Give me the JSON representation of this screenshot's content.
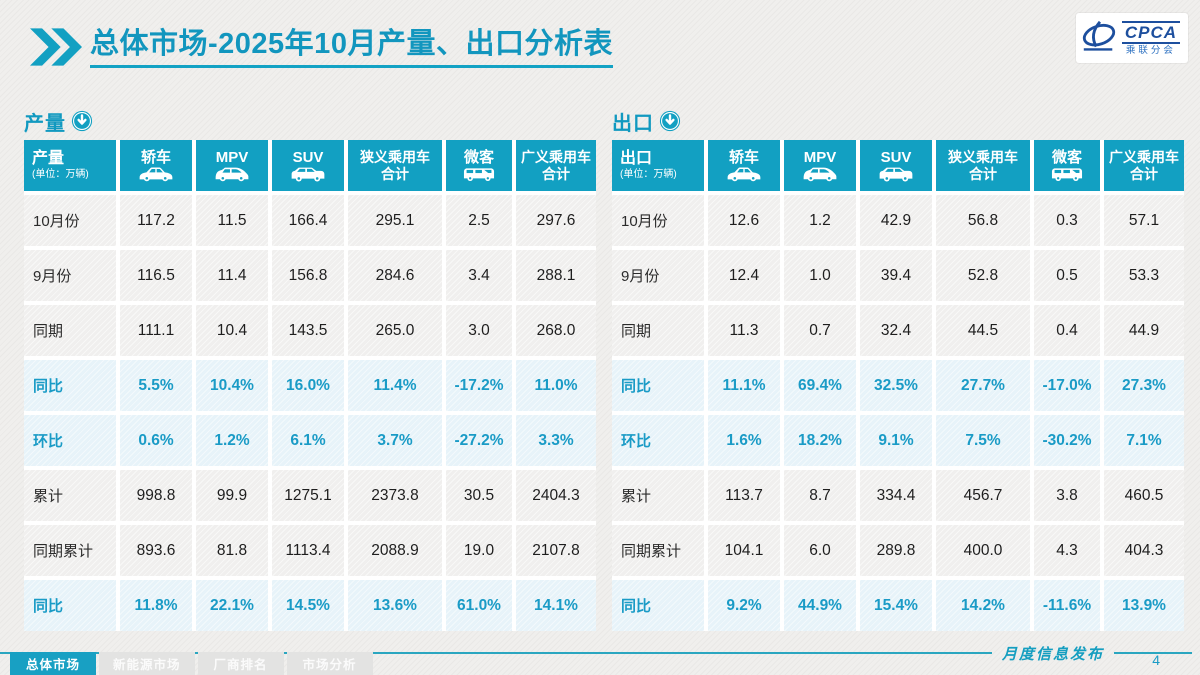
{
  "page": {
    "title_bold": "总体市场",
    "title_rest": "-2025年10月产量、出口分析表",
    "footer_text": "月度信息发布",
    "page_number": "4"
  },
  "logo": {
    "abbr": "CPCA",
    "name": "乘联分会"
  },
  "colors": {
    "accent": "#12a0c2",
    "header_bg": "#12a0c2",
    "highlight_bg": "#e7f3f9",
    "highlight_text": "#1a9bc6"
  },
  "bottom_tabs": [
    {
      "label": "总体市场",
      "active": true
    },
    {
      "label": "新能源市场",
      "active": false
    },
    {
      "label": "厂商排名",
      "active": false
    },
    {
      "label": "市场分析",
      "active": false
    }
  ],
  "tables": [
    {
      "section_label": "产量",
      "corner_label": "产量",
      "unit_note": "(单位：万辆)",
      "columns": [
        {
          "label": "轿车",
          "label2": "",
          "icon": "sedan-icon"
        },
        {
          "label": "MPV",
          "label2": "",
          "icon": "mpv-icon"
        },
        {
          "label": "SUV",
          "label2": "",
          "icon": "suv-icon"
        },
        {
          "label": "狭义乘用车",
          "label2": "合计",
          "icon": ""
        },
        {
          "label": "微客",
          "label2": "",
          "icon": "microvan-icon"
        },
        {
          "label": "广义乘用车",
          "label2": "合计",
          "icon": ""
        }
      ],
      "rows": [
        {
          "label": "10月份",
          "highlight": false,
          "cells": [
            "117.2",
            "11.5",
            "166.4",
            "295.1",
            "2.5",
            "297.6"
          ]
        },
        {
          "label": "9月份",
          "highlight": false,
          "cells": [
            "116.5",
            "11.4",
            "156.8",
            "284.6",
            "3.4",
            "288.1"
          ]
        },
        {
          "label": "同期",
          "highlight": false,
          "cells": [
            "111.1",
            "10.4",
            "143.5",
            "265.0",
            "3.0",
            "268.0"
          ]
        },
        {
          "label": "同比",
          "highlight": true,
          "cells": [
            "5.5%",
            "10.4%",
            "16.0%",
            "11.4%",
            "-17.2%",
            "11.0%"
          ]
        },
        {
          "label": "环比",
          "highlight": true,
          "cells": [
            "0.6%",
            "1.2%",
            "6.1%",
            "3.7%",
            "-27.2%",
            "3.3%"
          ]
        },
        {
          "label": "累计",
          "highlight": false,
          "cells": [
            "998.8",
            "99.9",
            "1275.1",
            "2373.8",
            "30.5",
            "2404.3"
          ]
        },
        {
          "label": "同期累计",
          "highlight": false,
          "cells": [
            "893.6",
            "81.8",
            "1113.4",
            "2088.9",
            "19.0",
            "2107.8"
          ]
        },
        {
          "label": "同比",
          "highlight": true,
          "cells": [
            "11.8%",
            "22.1%",
            "14.5%",
            "13.6%",
            "61.0%",
            "14.1%"
          ]
        }
      ]
    },
    {
      "section_label": "出口",
      "corner_label": "出口",
      "unit_note": "(单位：万辆)",
      "columns": [
        {
          "label": "轿车",
          "label2": "",
          "icon": "sedan-icon"
        },
        {
          "label": "MPV",
          "label2": "",
          "icon": "mpv-icon"
        },
        {
          "label": "SUV",
          "label2": "",
          "icon": "suv-icon"
        },
        {
          "label": "狭义乘用车",
          "label2": "合计",
          "icon": ""
        },
        {
          "label": "微客",
          "label2": "",
          "icon": "microvan-icon"
        },
        {
          "label": "广义乘用车",
          "label2": "合计",
          "icon": ""
        }
      ],
      "rows": [
        {
          "label": "10月份",
          "highlight": false,
          "cells": [
            "12.6",
            "1.2",
            "42.9",
            "56.8",
            "0.3",
            "57.1"
          ]
        },
        {
          "label": "9月份",
          "highlight": false,
          "cells": [
            "12.4",
            "1.0",
            "39.4",
            "52.8",
            "0.5",
            "53.3"
          ]
        },
        {
          "label": "同期",
          "highlight": false,
          "cells": [
            "11.3",
            "0.7",
            "32.4",
            "44.5",
            "0.4",
            "44.9"
          ]
        },
        {
          "label": "同比",
          "highlight": true,
          "cells": [
            "11.1%",
            "69.4%",
            "32.5%",
            "27.7%",
            "-17.0%",
            "27.3%"
          ]
        },
        {
          "label": "环比",
          "highlight": true,
          "cells": [
            "1.6%",
            "18.2%",
            "9.1%",
            "7.5%",
            "-30.2%",
            "7.1%"
          ]
        },
        {
          "label": "累计",
          "highlight": false,
          "cells": [
            "113.7",
            "8.7",
            "334.4",
            "456.7",
            "3.8",
            "460.5"
          ]
        },
        {
          "label": "同期累计",
          "highlight": false,
          "cells": [
            "104.1",
            "6.0",
            "289.8",
            "400.0",
            "4.3",
            "404.3"
          ]
        },
        {
          "label": "同比",
          "highlight": true,
          "cells": [
            "9.2%",
            "44.9%",
            "15.4%",
            "14.2%",
            "-11.6%",
            "13.9%"
          ]
        }
      ]
    }
  ]
}
